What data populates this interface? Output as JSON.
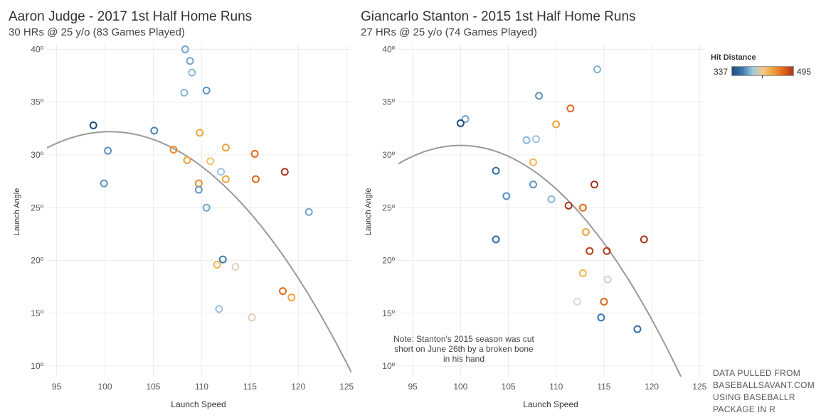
{
  "panels": [
    {
      "title": "Aaron Judge - 2017 1st Half Home Runs",
      "subtitle": "30 HRs @ 25 y/o (83 Games Played)"
    },
    {
      "title": "Giancarlo Stanton - 2015 1st Half Home Runs",
      "subtitle": "27 HRs @ 25 y/o (74 Games Played)"
    }
  ],
  "legend": {
    "title": "Hit Distance",
    "min": "337",
    "max": "495",
    "colors": [
      "#1f4e79",
      "#3a78b0",
      "#9cc6e0",
      "#f5c98a",
      "#f0a040",
      "#e06818",
      "#a8361c"
    ]
  },
  "note": "Note: Stanton's 2015 season was cut short on June 26th by a broken bone in his hand",
  "source": [
    "DATA PULLED FROM",
    "BASEBALLSAVANT.COM",
    "USING BASEBALLR",
    "PACKAGE IN R"
  ],
  "chart_data": [
    {
      "type": "scatter",
      "title": "Aaron Judge - 2017 1st Half Home Runs",
      "subtitle": "30 HRs @ 25 y/o (83 Games Played)",
      "xlabel": "Launch Speed",
      "ylabel": "Launch Angle",
      "xlim": [
        94,
        125.5
      ],
      "ylim": [
        9,
        40.5
      ],
      "xticks": [
        "95",
        "100",
        "105",
        "110",
        "115",
        "120",
        "125"
      ],
      "yticks": [
        "10º",
        "15º",
        "20º",
        "25º",
        "30º",
        "35º",
        "40º"
      ],
      "grid": true,
      "trend": {
        "type": "quadratic",
        "vertex": [
          100.5,
          32.2
        ],
        "curvature": -0.0365
      },
      "points": [
        {
          "x": 108.3,
          "y": 40.0,
          "color": "#6fa5cf"
        },
        {
          "x": 108.8,
          "y": 38.9,
          "color": "#6fa5cf"
        },
        {
          "x": 109.0,
          "y": 37.8,
          "color": "#89b8da"
        },
        {
          "x": 108.2,
          "y": 35.9,
          "color": "#89b8da"
        },
        {
          "x": 110.5,
          "y": 36.1,
          "color": "#5f95c4"
        },
        {
          "x": 98.8,
          "y": 32.8,
          "color": "#1f4e79"
        },
        {
          "x": 105.1,
          "y": 32.3,
          "color": "#4a86bb"
        },
        {
          "x": 109.8,
          "y": 32.1,
          "color": "#f3a54a"
        },
        {
          "x": 100.3,
          "y": 30.4,
          "color": "#5a92c4"
        },
        {
          "x": 107.1,
          "y": 30.5,
          "color": "#ec8a2c"
        },
        {
          "x": 112.5,
          "y": 30.7,
          "color": "#f0a040"
        },
        {
          "x": 115.5,
          "y": 30.1,
          "color": "#e06818"
        },
        {
          "x": 108.5,
          "y": 29.5,
          "color": "#f0a040"
        },
        {
          "x": 110.9,
          "y": 29.4,
          "color": "#f5c06a"
        },
        {
          "x": 112.0,
          "y": 28.4,
          "color": "#9cc6e0"
        },
        {
          "x": 118.6,
          "y": 28.4,
          "color": "#a8361c"
        },
        {
          "x": 99.9,
          "y": 27.3,
          "color": "#5a92c4"
        },
        {
          "x": 109.7,
          "y": 27.3,
          "color": "#ec8a2c"
        },
        {
          "x": 112.5,
          "y": 27.7,
          "color": "#f0a040"
        },
        {
          "x": 115.6,
          "y": 27.7,
          "color": "#e06818"
        },
        {
          "x": 109.7,
          "y": 26.7,
          "color": "#5f95c4"
        },
        {
          "x": 110.5,
          "y": 25.0,
          "color": "#6fa5cf"
        },
        {
          "x": 121.1,
          "y": 24.6,
          "color": "#6fa5cf"
        },
        {
          "x": 112.2,
          "y": 20.1,
          "color": "#3a78b0"
        },
        {
          "x": 111.6,
          "y": 19.6,
          "color": "#f5b555"
        },
        {
          "x": 113.5,
          "y": 19.4,
          "color": "#e0d2c0"
        },
        {
          "x": 118.4,
          "y": 17.1,
          "color": "#e06818"
        },
        {
          "x": 119.3,
          "y": 16.5,
          "color": "#f0a040"
        },
        {
          "x": 111.8,
          "y": 15.4,
          "color": "#9cc6e0"
        },
        {
          "x": 115.2,
          "y": 14.6,
          "color": "#e4cfb5"
        }
      ]
    },
    {
      "type": "scatter",
      "title": "Giancarlo Stanton - 2015 1st Half Home Runs",
      "subtitle": "27 HRs @ 25 y/o (74 Games Played)",
      "xlabel": "Launch Speed",
      "ylabel": "Launch Angle",
      "xlim": [
        93.5,
        125.5
      ],
      "ylim": [
        9,
        40.5
      ],
      "xticks": [
        "95",
        "100",
        "105",
        "110",
        "115",
        "120",
        "125"
      ],
      "yticks": [
        "10º",
        "15º",
        "20º",
        "25º",
        "30º",
        "35º",
        "40º"
      ],
      "grid": true,
      "trend": {
        "type": "quadratic",
        "vertex": [
          100,
          30.9
        ],
        "curvature": -0.0412
      },
      "points": [
        {
          "x": 114.3,
          "y": 38.1,
          "color": "#7fb0d6"
        },
        {
          "x": 108.2,
          "y": 35.6,
          "color": "#5f95c4"
        },
        {
          "x": 111.5,
          "y": 34.4,
          "color": "#e06818"
        },
        {
          "x": 100.5,
          "y": 33.4,
          "color": "#6fa5cf"
        },
        {
          "x": 100.0,
          "y": 33.0,
          "color": "#1f4e79"
        },
        {
          "x": 110.0,
          "y": 32.9,
          "color": "#f0a040"
        },
        {
          "x": 106.9,
          "y": 31.4,
          "color": "#89b8da"
        },
        {
          "x": 107.9,
          "y": 31.5,
          "color": "#9cc6e0"
        },
        {
          "x": 107.6,
          "y": 29.3,
          "color": "#f5b555"
        },
        {
          "x": 103.7,
          "y": 28.5,
          "color": "#2f6aa3"
        },
        {
          "x": 107.6,
          "y": 27.2,
          "color": "#5a92c4"
        },
        {
          "x": 114.0,
          "y": 27.2,
          "color": "#a8361c"
        },
        {
          "x": 104.8,
          "y": 26.1,
          "color": "#5a92c4"
        },
        {
          "x": 109.5,
          "y": 25.8,
          "color": "#89b8da"
        },
        {
          "x": 111.3,
          "y": 25.2,
          "color": "#a8361c"
        },
        {
          "x": 112.8,
          "y": 25.0,
          "color": "#e06818"
        },
        {
          "x": 113.1,
          "y": 22.7,
          "color": "#f0a040"
        },
        {
          "x": 103.7,
          "y": 22.0,
          "color": "#2f6aa3"
        },
        {
          "x": 119.2,
          "y": 22.0,
          "color": "#a8361c"
        },
        {
          "x": 113.5,
          "y": 20.9,
          "color": "#b5401c"
        },
        {
          "x": 115.3,
          "y": 20.9,
          "color": "#b5401c"
        },
        {
          "x": 112.8,
          "y": 18.8,
          "color": "#f5b555"
        },
        {
          "x": 115.4,
          "y": 18.2,
          "color": "#c8d4dc"
        },
        {
          "x": 112.2,
          "y": 16.1,
          "color": "#d8dde0"
        },
        {
          "x": 115.0,
          "y": 16.1,
          "color": "#e06818"
        },
        {
          "x": 114.7,
          "y": 14.6,
          "color": "#3a78b0"
        },
        {
          "x": 118.5,
          "y": 13.5,
          "color": "#2f6aa3"
        }
      ]
    }
  ]
}
